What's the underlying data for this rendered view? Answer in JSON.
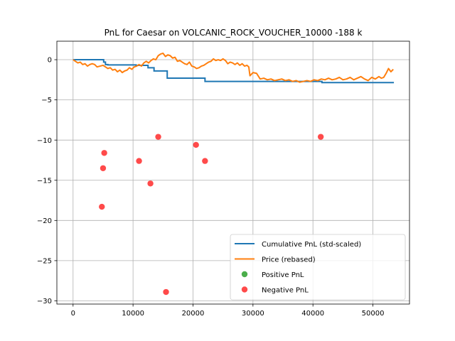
{
  "chart_data": {
    "type": "line",
    "title": "PnL for Caesar on VOLCANIC_ROCK_VOUCHER_10000 -188 k",
    "xlabel": "",
    "ylabel": "",
    "xlim": [
      -2700,
      56100
    ],
    "ylim": [
      -30.4,
      2.3
    ],
    "xticks": [
      0,
      10000,
      20000,
      30000,
      40000,
      50000
    ],
    "xtick_labels": [
      "0",
      "10000",
      "20000",
      "30000",
      "40000",
      "50000"
    ],
    "yticks": [
      0,
      -5,
      -10,
      -15,
      -20,
      -25,
      -30
    ],
    "ytick_labels": [
      "0",
      "−5",
      "−10",
      "−15",
      "−20",
      "−25",
      "−30"
    ],
    "grid": true,
    "legend_position": "lower-right",
    "series": [
      {
        "name": "Cumulative PnL (std-scaled)",
        "kind": "step",
        "color": "#1f77b4",
        "x": [
          0,
          4900,
          5100,
          5400,
          5800,
          10500,
          12500,
          13500,
          15500,
          15700,
          20000,
          22000,
          22200,
          35000,
          41000,
          41500,
          53500
        ],
        "y": [
          0.0,
          0.0,
          -0.3,
          -0.6,
          -0.65,
          -0.7,
          -1.0,
          -1.4,
          -1.4,
          -2.3,
          -2.3,
          -2.7,
          -2.7,
          -2.7,
          -2.7,
          -2.85,
          -2.85
        ]
      },
      {
        "name": "Price (rebased)",
        "kind": "line",
        "color": "#ff7f0e",
        "x": [
          0,
          400,
          800,
          1200,
          1600,
          2000,
          2400,
          2800,
          3200,
          3600,
          4000,
          4500,
          5000,
          5400,
          5800,
          6200,
          6600,
          7000,
          7400,
          7800,
          8200,
          8600,
          9000,
          9400,
          9800,
          10200,
          10600,
          11000,
          11400,
          11800,
          12200,
          12600,
          13000,
          13400,
          13800,
          14200,
          14600,
          15000,
          15400,
          15800,
          16200,
          16600,
          17000,
          17400,
          17800,
          18200,
          18600,
          19000,
          19400,
          19800,
          20200,
          20600,
          21000,
          21400,
          21800,
          22200,
          22600,
          23000,
          23400,
          23800,
          24200,
          24600,
          25000,
          25400,
          25800,
          26200,
          26600,
          27000,
          27400,
          27800,
          28200,
          28600,
          29000,
          29300,
          29500,
          30000,
          30600,
          31200,
          31800,
          32400,
          33000,
          33600,
          34200,
          34800,
          35400,
          36000,
          36600,
          37200,
          37800,
          38400,
          39000,
          39600,
          40200,
          40800,
          41400,
          42000,
          42600,
          43200,
          43800,
          44400,
          45000,
          45600,
          46200,
          46800,
          47400,
          48000,
          48600,
          49200,
          49800,
          50400,
          51000,
          51400,
          51800,
          52200,
          52600,
          53000,
          53400
        ],
        "y": [
          0.0,
          -0.2,
          -0.4,
          -0.3,
          -0.6,
          -0.5,
          -0.8,
          -0.6,
          -0.5,
          -0.6,
          -0.9,
          -0.8,
          -0.7,
          -0.9,
          -1.1,
          -1.0,
          -1.3,
          -1.2,
          -1.5,
          -1.3,
          -1.6,
          -1.4,
          -1.3,
          -1.0,
          -1.2,
          -0.9,
          -0.8,
          -0.6,
          -0.8,
          -0.4,
          -0.2,
          -0.4,
          -0.1,
          0.1,
          0.0,
          0.5,
          0.7,
          0.8,
          0.4,
          0.6,
          0.5,
          0.2,
          0.3,
          -0.2,
          -0.1,
          -0.3,
          -0.5,
          -0.6,
          -0.3,
          -0.8,
          -0.9,
          -1.1,
          -1.0,
          -0.8,
          -0.7,
          -0.5,
          -0.3,
          -0.2,
          0.1,
          -0.1,
          0.0,
          -0.1,
          0.1,
          -0.1,
          -0.5,
          -0.3,
          -0.4,
          -0.6,
          -0.4,
          -0.7,
          -0.5,
          -0.8,
          -0.7,
          -0.9,
          -2.0,
          -1.6,
          -1.7,
          -2.4,
          -2.3,
          -2.5,
          -2.4,
          -2.6,
          -2.5,
          -2.4,
          -2.6,
          -2.5,
          -2.7,
          -2.6,
          -2.8,
          -2.7,
          -2.6,
          -2.7,
          -2.5,
          -2.6,
          -2.4,
          -2.5,
          -2.3,
          -2.5,
          -2.4,
          -2.2,
          -2.5,
          -2.4,
          -2.2,
          -2.5,
          -2.3,
          -2.1,
          -2.4,
          -2.6,
          -2.2,
          -2.4,
          -2.1,
          -2.3,
          -2.2,
          -1.7,
          -1.1,
          -1.5,
          -1.2
        ]
      },
      {
        "name": "Positive PnL",
        "kind": "scatter",
        "color": "#2ca02c",
        "x": [],
        "y": []
      },
      {
        "name": "Negative PnL",
        "kind": "scatter",
        "color": "#ff2a2a",
        "x": [
          4800,
          5000,
          5200,
          11000,
          12900,
          14200,
          15500,
          20500,
          22000,
          41300
        ],
        "y": [
          -18.3,
          -13.5,
          -11.6,
          -12.6,
          -15.4,
          -9.6,
          -28.9,
          -10.6,
          -12.6,
          -9.6
        ]
      }
    ]
  }
}
